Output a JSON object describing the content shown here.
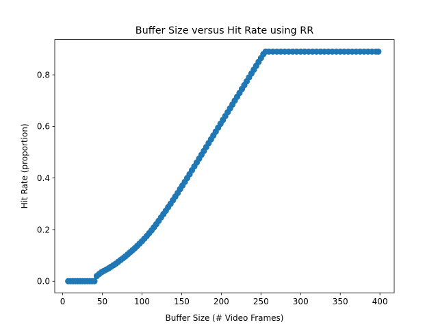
{
  "chart_data": {
    "type": "scatter",
    "title": "Buffer Size versus Hit Rate using RR",
    "xlabel": "Buffer Size (# Video Frames)",
    "ylabel": "Hit Rate (proportion)",
    "xlim": [
      -10,
      418
    ],
    "ylim": [
      -0.045,
      0.937
    ],
    "xticks": [
      0,
      50,
      100,
      150,
      200,
      250,
      300,
      350,
      400
    ],
    "yticks": [
      0.0,
      0.2,
      0.4,
      0.6,
      0.8
    ],
    "ytick_labels": [
      "0.0",
      "0.2",
      "0.4",
      "0.6",
      "0.8"
    ],
    "grid": false,
    "legend": "none",
    "marker_color": "#1f77b4",
    "x": [
      7,
      10,
      13,
      16,
      19,
      22,
      25,
      28,
      31,
      34,
      37,
      40,
      43,
      46,
      49,
      52,
      55,
      58,
      61,
      64,
      67,
      70,
      73,
      76,
      79,
      82,
      85,
      88,
      91,
      94,
      97,
      100,
      103,
      106,
      109,
      112,
      115,
      118,
      121,
      124,
      127,
      130,
      133,
      136,
      139,
      142,
      145,
      148,
      151,
      154,
      157,
      160,
      163,
      166,
      169,
      172,
      175,
      178,
      181,
      184,
      187,
      190,
      193,
      196,
      199,
      202,
      205,
      208,
      211,
      214,
      217,
      220,
      223,
      226,
      229,
      232,
      235,
      238,
      241,
      244,
      247,
      250,
      253,
      256,
      260,
      265,
      270,
      275,
      280,
      285,
      290,
      295,
      300,
      305,
      310,
      315,
      320,
      325,
      330,
      335,
      340,
      345,
      350,
      355,
      360,
      365,
      370,
      375,
      380,
      385,
      390,
      395,
      398
    ],
    "y": [
      0.0,
      0.0,
      0.0,
      0.0,
      0.0,
      0.0,
      0.0,
      0.0,
      0.0,
      0.0,
      0.0,
      0.0,
      0.02,
      0.028,
      0.035,
      0.04,
      0.045,
      0.05,
      0.056,
      0.062,
      0.068,
      0.075,
      0.082,
      0.089,
      0.096,
      0.104,
      0.112,
      0.12,
      0.128,
      0.137,
      0.146,
      0.155,
      0.165,
      0.175,
      0.186,
      0.197,
      0.209,
      0.221,
      0.234,
      0.247,
      0.26,
      0.273,
      0.287,
      0.3,
      0.314,
      0.328,
      0.342,
      0.357,
      0.371,
      0.385,
      0.4,
      0.415,
      0.43,
      0.445,
      0.46,
      0.475,
      0.49,
      0.505,
      0.52,
      0.535,
      0.55,
      0.565,
      0.58,
      0.595,
      0.61,
      0.625,
      0.64,
      0.655,
      0.67,
      0.685,
      0.7,
      0.715,
      0.73,
      0.745,
      0.76,
      0.775,
      0.79,
      0.805,
      0.82,
      0.835,
      0.85,
      0.865,
      0.88,
      0.89,
      0.89,
      0.89,
      0.89,
      0.89,
      0.89,
      0.89,
      0.89,
      0.89,
      0.89,
      0.89,
      0.89,
      0.89,
      0.89,
      0.89,
      0.89,
      0.89,
      0.89,
      0.89,
      0.89,
      0.89,
      0.89,
      0.89,
      0.89,
      0.89,
      0.89,
      0.89,
      0.89,
      0.89,
      0.89
    ]
  }
}
